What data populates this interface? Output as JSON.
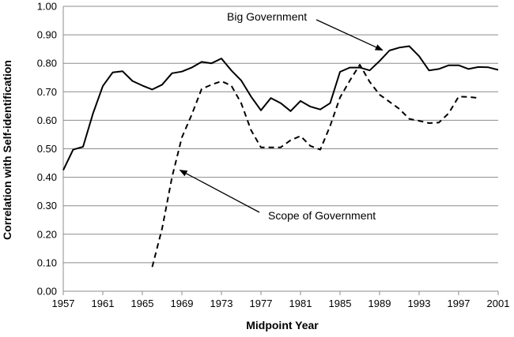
{
  "chart_data": {
    "type": "line",
    "xlabel": "Midpoint Year",
    "ylabel": "Correlation with Self-identification",
    "xlim": [
      1957,
      2001
    ],
    "ylim": [
      0.0,
      1.0
    ],
    "x_ticks": [
      "1957",
      "1961",
      "1965",
      "1969",
      "1973",
      "1977",
      "1981",
      "1985",
      "1989",
      "1993",
      "1997",
      "2001"
    ],
    "y_ticks": [
      "0.00",
      "0.10",
      "0.20",
      "0.30",
      "0.40",
      "0.50",
      "0.60",
      "0.70",
      "0.80",
      "0.90",
      "1.00"
    ],
    "grid": "horizontal",
    "colors": {
      "line": "#000000",
      "grid": "#8c8c8c"
    },
    "series": [
      {
        "name": "Big Government",
        "style": "solid",
        "x": [
          1957,
          1958,
          1959,
          1960,
          1961,
          1962,
          1963,
          1964,
          1965,
          1966,
          1967,
          1968,
          1969,
          1970,
          1971,
          1972,
          1973,
          1974,
          1975,
          1976,
          1977,
          1978,
          1979,
          1980,
          1981,
          1982,
          1983,
          1984,
          1985,
          1986,
          1987,
          1988,
          1989,
          1990,
          1991,
          1992,
          1993,
          1994,
          1995,
          1996,
          1997,
          1998,
          1999,
          2000,
          2001
        ],
        "values": [
          0.425,
          0.497,
          0.507,
          0.623,
          0.72,
          0.768,
          0.772,
          0.738,
          0.722,
          0.708,
          0.725,
          0.765,
          0.771,
          0.785,
          0.805,
          0.8,
          0.817,
          0.775,
          0.74,
          0.683,
          0.635,
          0.678,
          0.66,
          0.632,
          0.668,
          0.648,
          0.638,
          0.66,
          0.77,
          0.785,
          0.785,
          0.775,
          0.808,
          0.845,
          0.855,
          0.86,
          0.825,
          0.775,
          0.78,
          0.793,
          0.793,
          0.78,
          0.787,
          0.786,
          0.777
        ]
      },
      {
        "name": "Scope of Government",
        "style": "dashed",
        "x": [
          1966,
          1967,
          1968,
          1969,
          1970,
          1971,
          1972,
          1973,
          1974,
          1975,
          1976,
          1977,
          1978,
          1979,
          1980,
          1981,
          1982,
          1983,
          1984,
          1985,
          1986,
          1987,
          1988,
          1989,
          1990,
          1991,
          1992,
          1993,
          1994,
          1995,
          1996,
          1997,
          1998,
          1999
        ],
        "values": [
          0.085,
          0.22,
          0.4,
          0.54,
          0.62,
          0.71,
          0.725,
          0.737,
          0.722,
          0.66,
          0.565,
          0.505,
          0.505,
          0.505,
          0.53,
          0.545,
          0.51,
          0.497,
          0.58,
          0.68,
          0.74,
          0.795,
          0.735,
          0.69,
          0.665,
          0.64,
          0.605,
          0.598,
          0.59,
          0.592,
          0.625,
          0.683,
          0.682,
          0.678
        ]
      }
    ],
    "annotations": [
      {
        "text": "Big Government",
        "arrow_to_x": 1989.3,
        "arrow_to_y": 0.846
      },
      {
        "text": "Scope of Government",
        "arrow_to_x": 1968.8,
        "arrow_to_y": 0.425
      }
    ]
  }
}
